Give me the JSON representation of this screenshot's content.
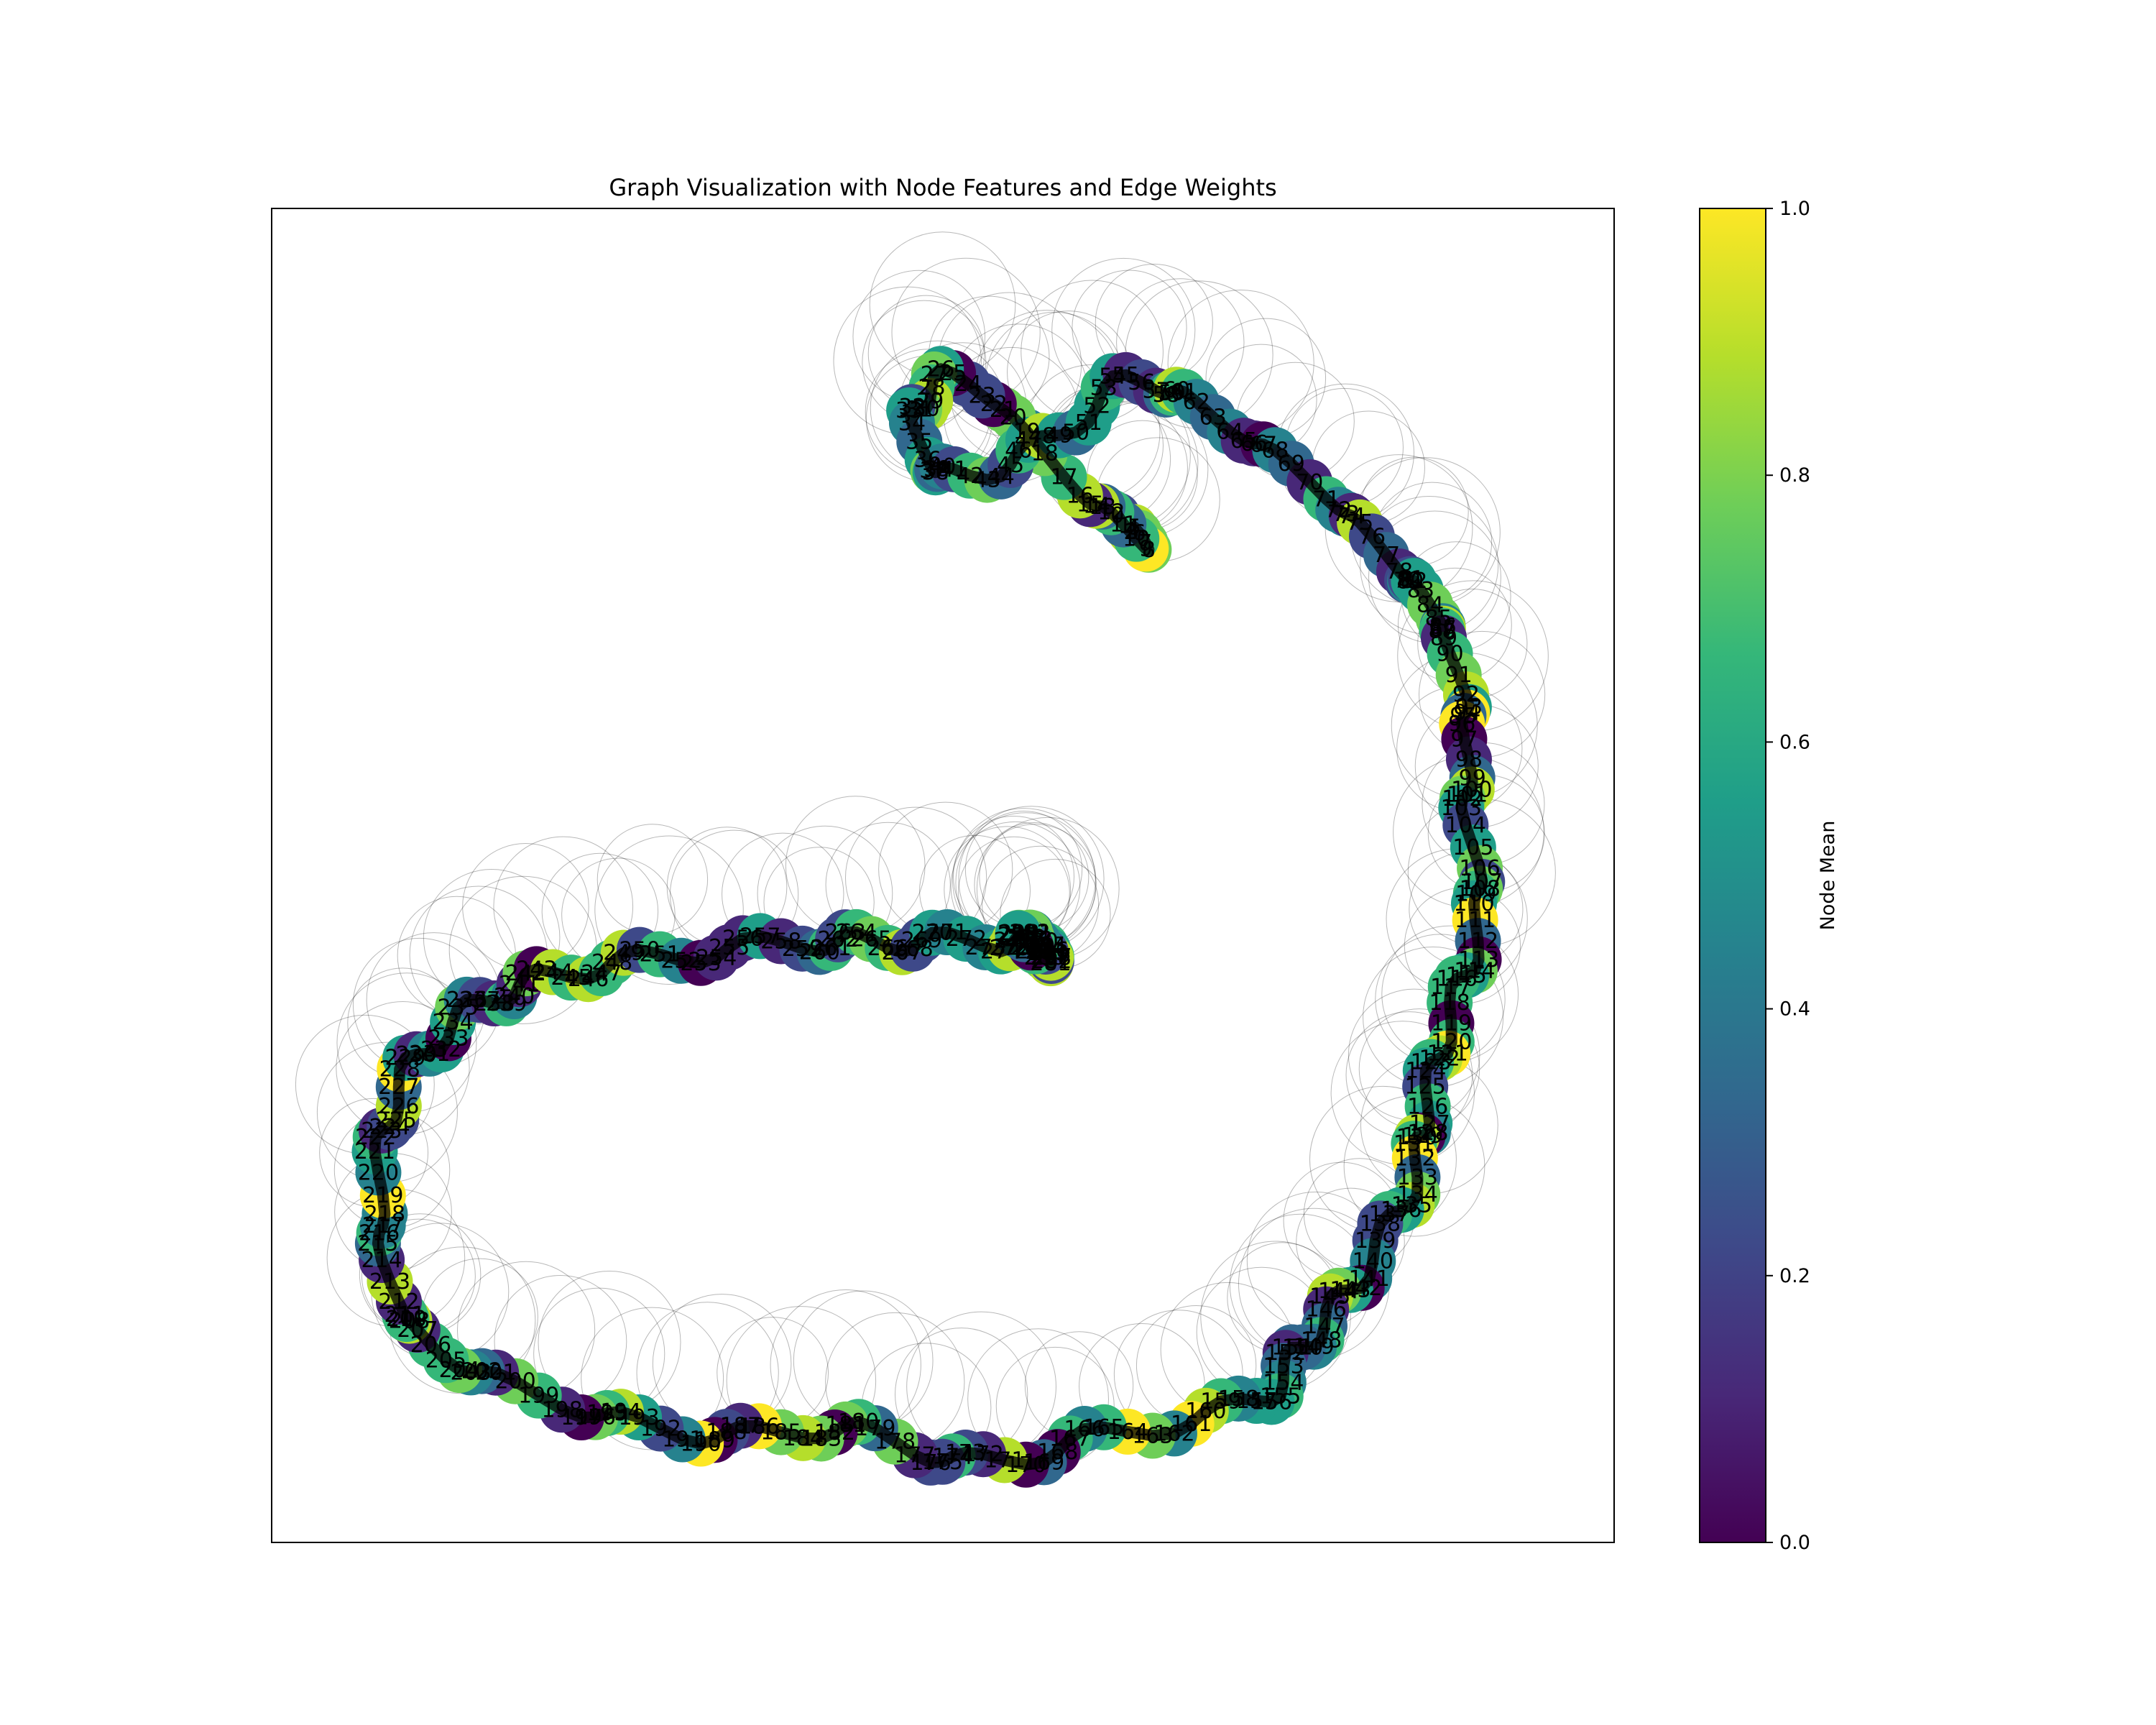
{
  "chart_data": {
    "type": "scatter",
    "title": "Graph Visualization with Node Features and Edge Weights",
    "colorbar": {
      "label": "Node Mean",
      "range": [
        0.0,
        1.0
      ],
      "ticks": [
        "0.0",
        "0.2",
        "0.4",
        "0.6",
        "0.8",
        "1.0"
      ],
      "colormap": [
        "#440154",
        "#482878",
        "#3e4989",
        "#31688e",
        "#26828e",
        "#1f9e89",
        "#35b779",
        "#6ece58",
        "#b5de2b",
        "#fde725"
      ]
    },
    "grid": false,
    "legend": "none",
    "x_range": [
      0,
      1
    ],
    "y_range": [
      0,
      1
    ],
    "curve": [
      [
        0.63,
        0.23
      ],
      [
        0.65,
        0.25
      ],
      [
        0.6,
        0.21
      ],
      [
        0.52,
        0.13
      ],
      [
        0.48,
        0.15
      ],
      [
        0.5,
        0.2
      ],
      [
        0.57,
        0.18
      ],
      [
        0.64,
        0.13
      ],
      [
        0.7,
        0.155
      ],
      [
        0.78,
        0.21
      ],
      [
        0.84,
        0.27
      ],
      [
        0.87,
        0.31
      ],
      [
        0.89,
        0.38
      ],
      [
        0.89,
        0.45
      ],
      [
        0.9,
        0.53
      ],
      [
        0.88,
        0.6
      ],
      [
        0.86,
        0.67
      ],
      [
        0.85,
        0.73
      ],
      [
        0.81,
        0.8
      ],
      [
        0.77,
        0.85
      ],
      [
        0.73,
        0.895
      ],
      [
        0.62,
        0.92
      ],
      [
        0.52,
        0.94
      ],
      [
        0.43,
        0.915
      ],
      [
        0.33,
        0.92
      ],
      [
        0.23,
        0.9
      ],
      [
        0.13,
        0.86
      ],
      [
        0.09,
        0.81
      ],
      [
        0.08,
        0.72
      ],
      [
        0.1,
        0.65
      ],
      [
        0.15,
        0.6
      ],
      [
        0.21,
        0.575
      ],
      [
        0.3,
        0.56
      ],
      [
        0.4,
        0.55
      ],
      [
        0.47,
        0.55
      ],
      [
        0.55,
        0.55
      ],
      [
        0.58,
        0.56
      ],
      [
        0.57,
        0.55
      ],
      [
        0.56,
        0.55
      ]
    ],
    "node_count": 300,
    "edge_color": "#000000"
  }
}
